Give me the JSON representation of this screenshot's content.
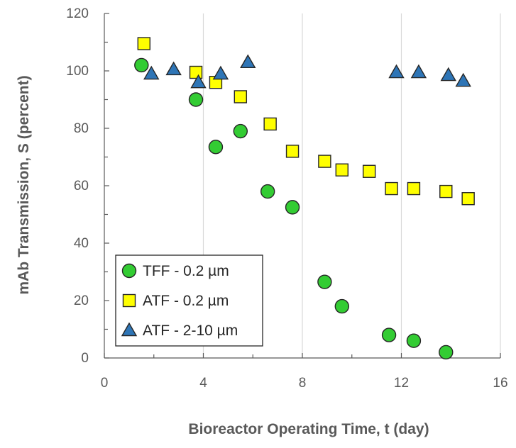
{
  "chart_data": {
    "type": "scatter",
    "title": "",
    "xlabel": "Bioreactor Operating Time, t (day)",
    "ylabel": "mAb Transmission, S (percent)",
    "xlim": [
      0,
      16
    ],
    "ylim": [
      0,
      120
    ],
    "x_ticks": [
      0,
      4,
      8,
      12,
      16
    ],
    "y_ticks": [
      0,
      20,
      40,
      60,
      80,
      100,
      120
    ],
    "x_minor_step": 2,
    "y_minor_step": 10,
    "grid": "vertical major gridlines",
    "legend_position": "bottom-left",
    "series": [
      {
        "name": "TFF - 0.2 µm",
        "marker": "circle",
        "color": "#33CC33",
        "points": [
          {
            "x": 1.5,
            "y": 102
          },
          {
            "x": 3.7,
            "y": 90
          },
          {
            "x": 4.5,
            "y": 73.5
          },
          {
            "x": 5.5,
            "y": 79
          },
          {
            "x": 6.6,
            "y": 58
          },
          {
            "x": 7.6,
            "y": 52.5
          },
          {
            "x": 8.9,
            "y": 26.5
          },
          {
            "x": 9.6,
            "y": 18
          },
          {
            "x": 11.5,
            "y": 8
          },
          {
            "x": 12.5,
            "y": 6
          },
          {
            "x": 13.8,
            "y": 2
          }
        ]
      },
      {
        "name": "ATF - 0.2 µm",
        "marker": "square",
        "color": "#FFFF00",
        "points": [
          {
            "x": 1.6,
            "y": 109.5
          },
          {
            "x": 3.7,
            "y": 99.5
          },
          {
            "x": 4.5,
            "y": 96
          },
          {
            "x": 5.5,
            "y": 91
          },
          {
            "x": 6.7,
            "y": 81.5
          },
          {
            "x": 7.6,
            "y": 72
          },
          {
            "x": 8.9,
            "y": 68.5
          },
          {
            "x": 9.6,
            "y": 65.5
          },
          {
            "x": 10.7,
            "y": 65
          },
          {
            "x": 11.6,
            "y": 59
          },
          {
            "x": 12.5,
            "y": 59
          },
          {
            "x": 13.8,
            "y": 58
          },
          {
            "x": 14.7,
            "y": 55.5
          }
        ]
      },
      {
        "name": "ATF - 2-10 µm",
        "marker": "triangle",
        "color": "#2E75B6",
        "points": [
          {
            "x": 1.9,
            "y": 99
          },
          {
            "x": 2.8,
            "y": 100.5
          },
          {
            "x": 3.8,
            "y": 96
          },
          {
            "x": 4.7,
            "y": 99
          },
          {
            "x": 5.8,
            "y": 103
          },
          {
            "x": 11.8,
            "y": 99.5
          },
          {
            "x": 12.7,
            "y": 99.5
          },
          {
            "x": 13.9,
            "y": 98.5
          },
          {
            "x": 14.5,
            "y": 96.5
          }
        ]
      }
    ]
  }
}
